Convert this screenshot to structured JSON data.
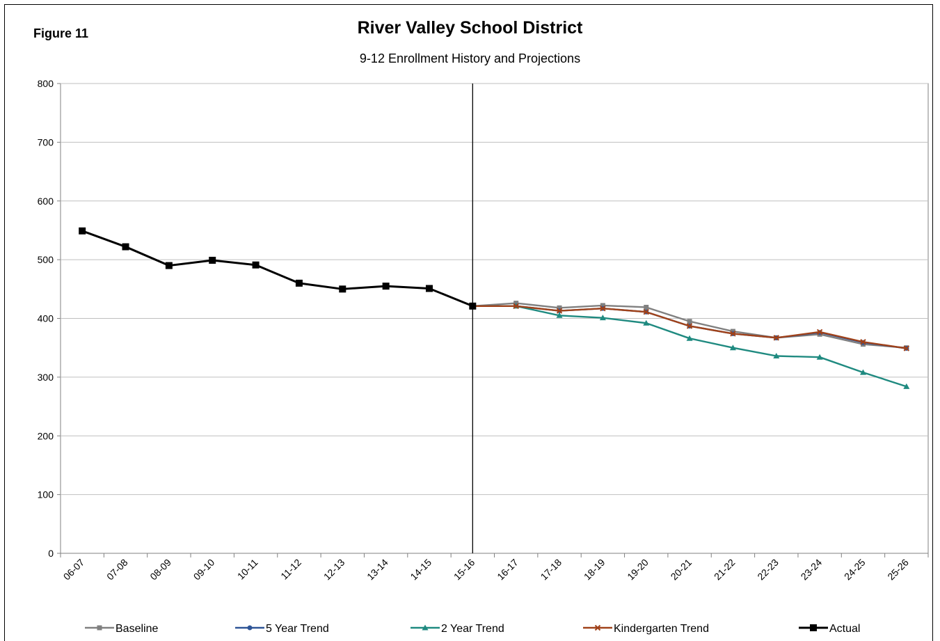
{
  "figure_label": "Figure 11",
  "chart_data": {
    "type": "line",
    "title": "River Valley School District",
    "subtitle": "9-12 Enrollment History and Projections",
    "xlabel": "",
    "ylabel": "",
    "ylim": [
      0,
      800
    ],
    "yticks": [
      0,
      100,
      200,
      300,
      400,
      500,
      600,
      700,
      800
    ],
    "grid": true,
    "legend_position": "bottom",
    "categories": [
      "06-07",
      "07-08",
      "08-09",
      "09-10",
      "10-11",
      "11-12",
      "12-13",
      "13-14",
      "14-15",
      "15-16",
      "16-17",
      "17-18",
      "18-19",
      "19-20",
      "20-21",
      "21-22",
      "22-23",
      "23-24",
      "24-25",
      "25-26"
    ],
    "divider_category": "15-16",
    "series": [
      {
        "name": "Baseline",
        "color": "#808080",
        "marker": "square",
        "values": [
          null,
          null,
          null,
          null,
          null,
          null,
          null,
          null,
          null,
          421,
          426,
          418,
          422,
          419,
          395,
          378,
          367,
          373,
          356,
          350
        ]
      },
      {
        "name": "5 Year Trend",
        "color": "#2f5597",
        "marker": "circle",
        "values": [
          null,
          null,
          null,
          null,
          null,
          null,
          null,
          null,
          null,
          421,
          421,
          413,
          417,
          411,
          387,
          374,
          367,
          376,
          359,
          349
        ]
      },
      {
        "name": "2 Year Trend",
        "color": "#1f8a80",
        "marker": "triangle",
        "values": [
          null,
          null,
          null,
          null,
          null,
          null,
          null,
          null,
          null,
          421,
          421,
          405,
          401,
          392,
          366,
          350,
          336,
          334,
          308,
          284
        ]
      },
      {
        "name": "Kindergarten Trend",
        "color": "#a0421a",
        "marker": "x",
        "values": [
          null,
          null,
          null,
          null,
          null,
          null,
          null,
          null,
          null,
          421,
          421,
          413,
          417,
          411,
          387,
          374,
          367,
          377,
          360,
          349
        ]
      },
      {
        "name": "Actual",
        "color": "#000000",
        "marker": "square",
        "values": [
          549,
          522,
          490,
          499,
          491,
          460,
          450,
          455,
          451,
          421,
          null,
          null,
          null,
          null,
          null,
          null,
          null,
          null,
          null,
          null
        ]
      }
    ]
  }
}
